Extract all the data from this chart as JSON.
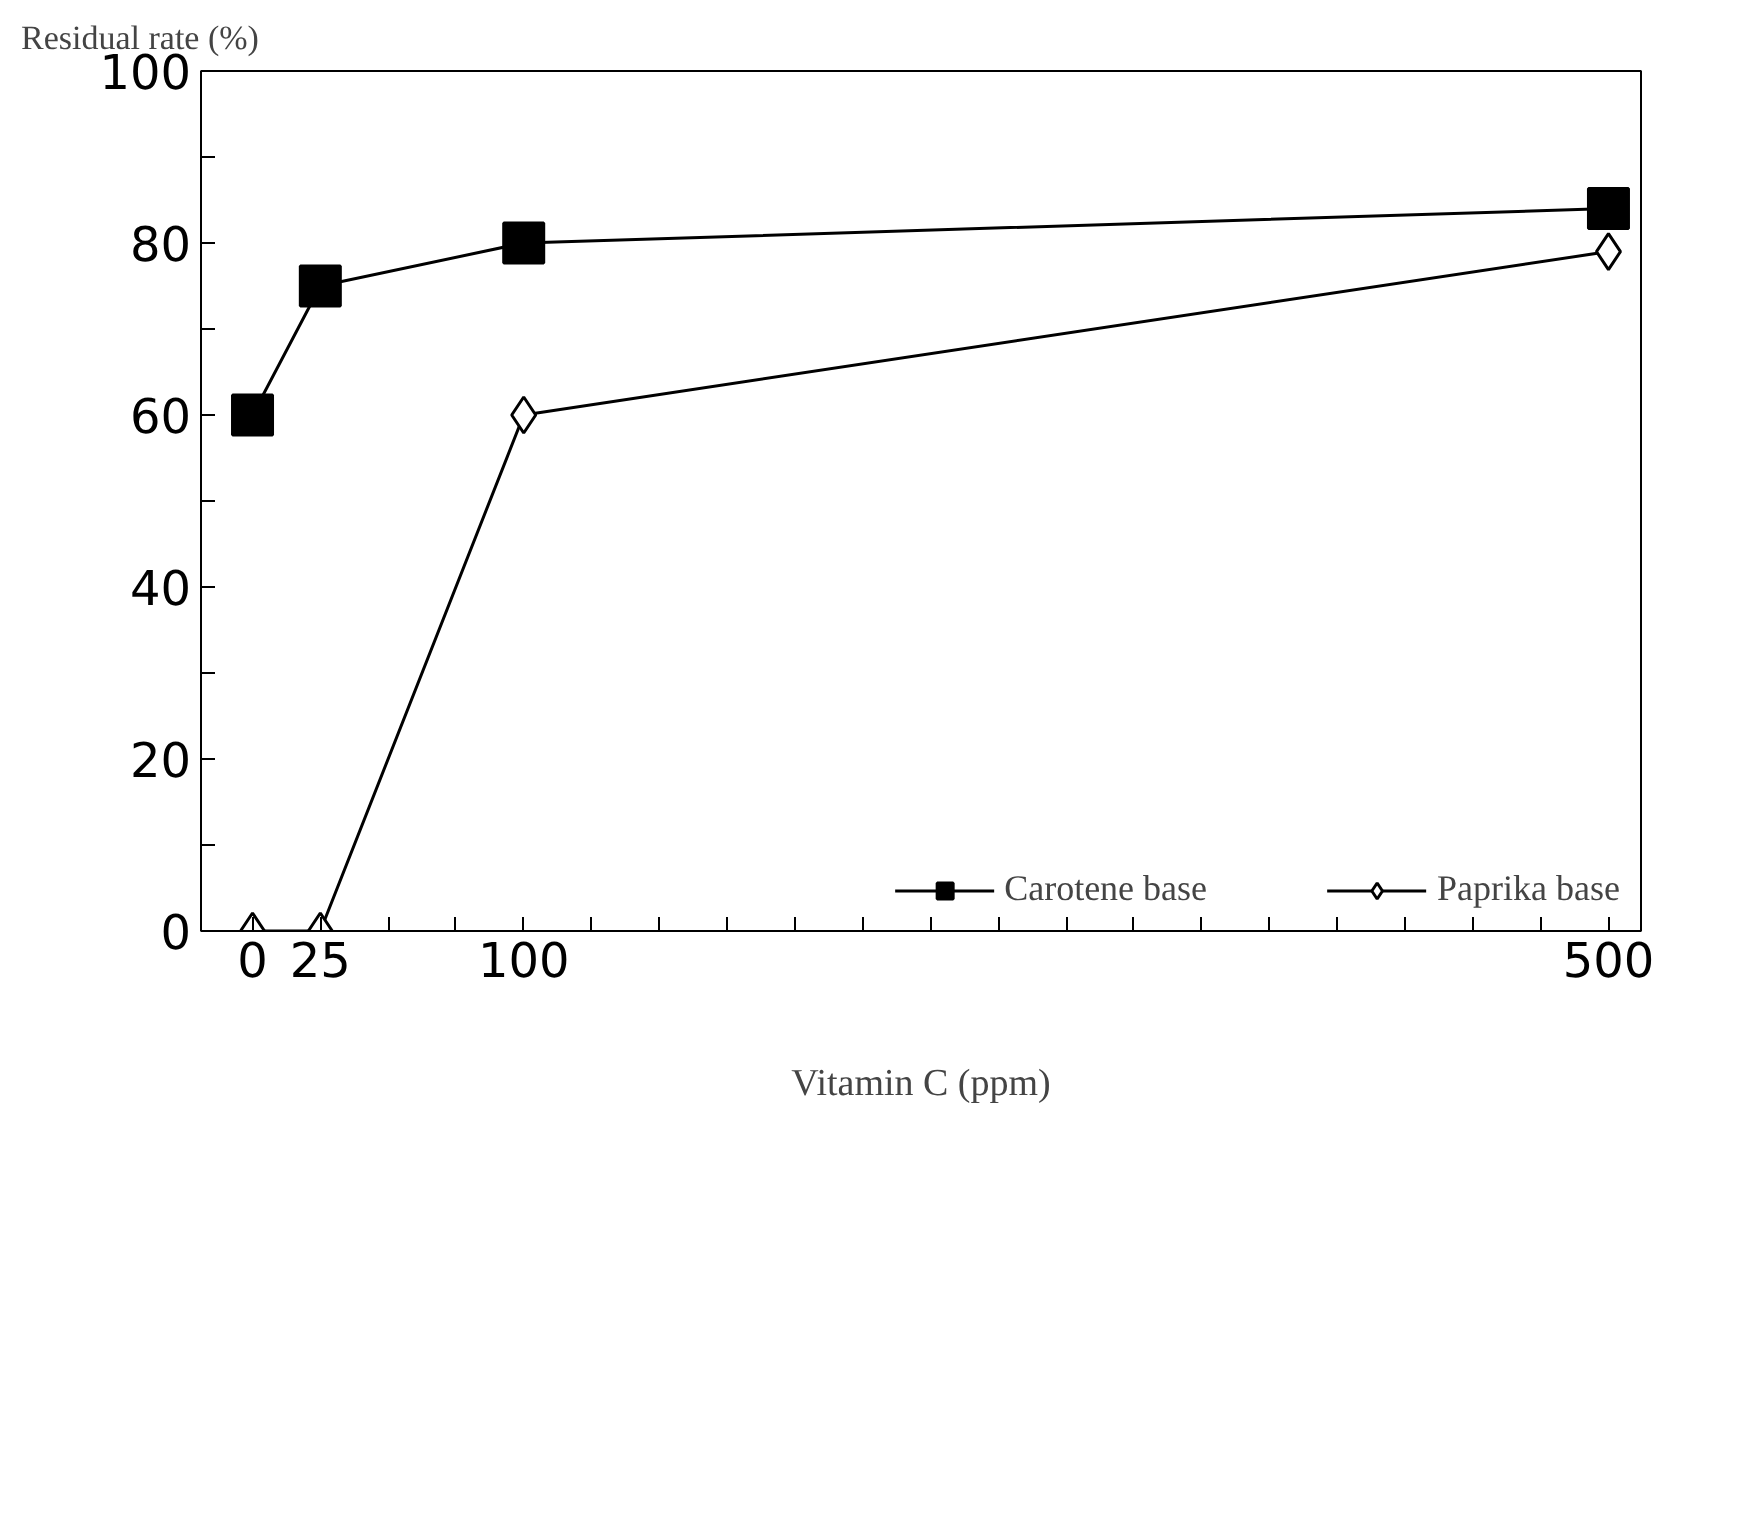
{
  "chart_data": {
    "type": "line",
    "xlabel": "Vitamin C (ppm)",
    "ylabel": "Residual rate (%)",
    "x": [
      0,
      25,
      100,
      500
    ],
    "series": [
      {
        "name": "Carotene base",
        "color": "#000000",
        "marker": "square",
        "values": [
          60,
          75,
          80,
          84
        ]
      },
      {
        "name": "Paprika base",
        "color": "#000000",
        "marker": "diamond",
        "values": [
          0,
          0,
          60,
          79
        ]
      }
    ],
    "xlim": [
      -19,
      512
    ],
    "xticks": [
      0,
      25,
      {
        "value": 50,
        "label": null
      },
      {
        "value": 75,
        "label": null
      },
      100,
      {
        "value": 125,
        "label": null
      },
      {
        "value": 150,
        "label": null
      },
      {
        "value": 175,
        "label": null
      },
      {
        "value": 200,
        "label": null
      },
      {
        "value": 225,
        "label": null
      },
      {
        "value": 250,
        "label": null
      },
      {
        "value": 275,
        "label": null
      },
      {
        "value": 300,
        "label": null
      },
      {
        "value": 325,
        "label": null
      },
      {
        "value": 350,
        "label": null
      },
      {
        "value": 375,
        "label": null
      },
      {
        "value": 400,
        "label": null
      },
      {
        "value": 425,
        "label": null
      },
      {
        "value": 450,
        "label": null
      },
      {
        "value": 475,
        "label": null
      },
      500
    ],
    "ylim": [
      0,
      100
    ],
    "yticks": [
      0,
      {
        "value": 10,
        "label": null
      },
      20,
      {
        "value": 30,
        "label": null
      },
      40,
      {
        "value": 50,
        "label": null
      },
      60,
      {
        "value": 70,
        "label": null
      },
      80,
      {
        "value": 90,
        "label": null
      },
      100
    ],
    "grid": false,
    "legend": "bottom right",
    "line_style": "solid"
  }
}
